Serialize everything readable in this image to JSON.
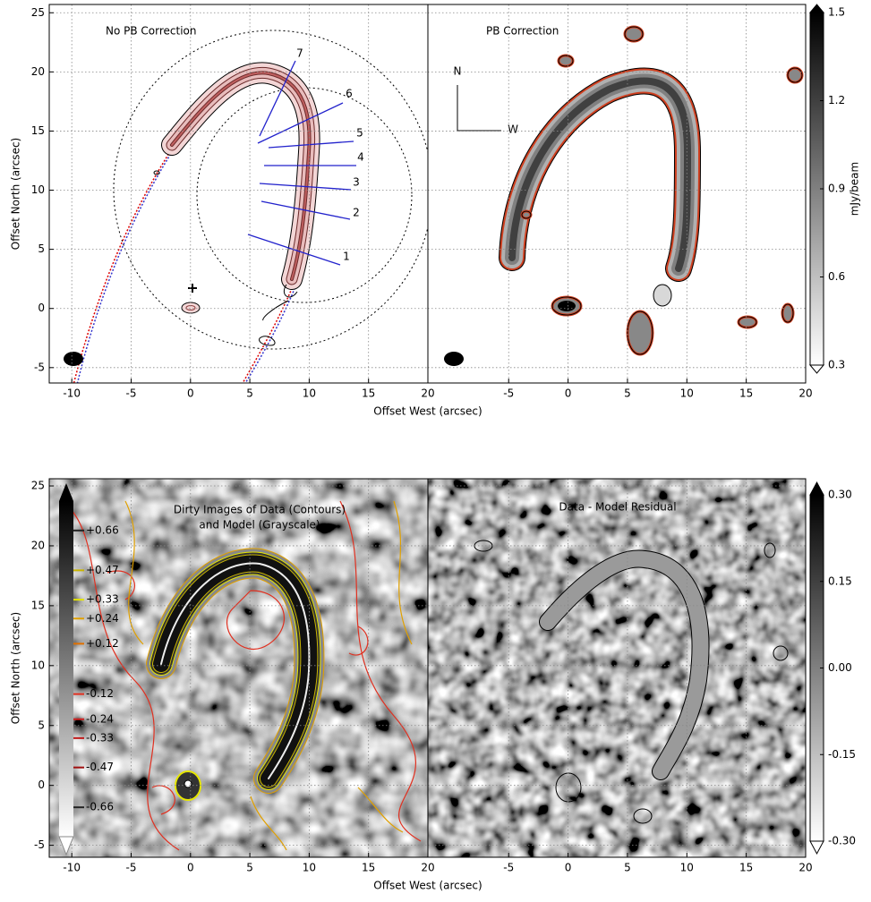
{
  "chart_data": [
    {
      "type": "image",
      "title": "No PB Correction",
      "xlim": [
        -11.9,
        20
      ],
      "ylim": [
        -6.3,
        25.7
      ],
      "xticks": [
        -10,
        -5,
        0,
        5,
        10,
        15,
        20
      ],
      "yticks": [
        -5,
        0,
        5,
        10,
        15,
        20,
        25
      ],
      "xlabel": "Offset West (arcsec)",
      "ylabel": "Offset North (arcsec)",
      "grid": true,
      "slit_labels": [
        "1",
        "2",
        "3",
        "4",
        "5",
        "6",
        "7"
      ]
    },
    {
      "type": "image",
      "title": "PB Correction",
      "xlim": [
        -11.8,
        20
      ],
      "ylim": [
        -6.3,
        25.7
      ],
      "xticks": [
        -5,
        0,
        5,
        10,
        15,
        20
      ],
      "grid": true,
      "annotations": [
        "N",
        "W"
      ],
      "colorbar": {
        "label": "mJy/beam",
        "lim": [
          0.3,
          1.5
        ],
        "ticks": [
          0.3,
          0.6,
          0.9,
          1.2,
          1.5
        ]
      }
    },
    {
      "type": "image",
      "title": [
        "Dirty Images of Data (Contours)",
        "and Model (Grayscale)"
      ],
      "xlim": [
        -11.9,
        20
      ],
      "ylim": [
        -6,
        25.6
      ],
      "xticks": [
        -10,
        -5,
        0,
        5,
        10,
        15,
        20
      ],
      "yticks": [
        -5,
        0,
        5,
        10,
        15,
        20,
        25
      ],
      "xlabel": "Offset West (arcsec)",
      "ylabel": "Offset North (arcsec)",
      "grid": true,
      "contour_colorbar": {
        "lim": [
          -0.8,
          0.8
        ],
        "levels": [
          {
            "value": 0.66,
            "label": "+0.66",
            "color": "#222222"
          },
          {
            "value": 0.47,
            "label": "+0.47",
            "color": "#c8b400"
          },
          {
            "value": 0.33,
            "label": "+0.33",
            "color": "#e6e600"
          },
          {
            "value": 0.24,
            "label": "+0.24",
            "color": "#e0a000"
          },
          {
            "value": 0.12,
            "label": "+0.12",
            "color": "#e07000"
          },
          {
            "value": -0.12,
            "label": "-0.12",
            "color": "#e03020"
          },
          {
            "value": -0.24,
            "label": "-0.24",
            "color": "#d02020"
          },
          {
            "value": -0.33,
            "label": "-0.33",
            "color": "#c01818"
          },
          {
            "value": -0.47,
            "label": "-0.47",
            "color": "#a01010"
          },
          {
            "value": -0.66,
            "label": "-0.66",
            "color": "#222222"
          }
        ]
      }
    },
    {
      "type": "image",
      "title": "Data - Model Residual",
      "xlim": [
        -11.8,
        20
      ],
      "ylim": [
        -6,
        25.6
      ],
      "xticks": [
        -5,
        0,
        5,
        10,
        15,
        20
      ],
      "grid": true,
      "colorbar": {
        "lim": [
          -0.3,
          0.3
        ],
        "ticks": [
          {
            "value": -0.3,
            "label": "-0.30"
          },
          -0.15,
          {
            "value": 0,
            "label": "0.00"
          },
          0.15,
          {
            "value": 0.3,
            "label": "0.30"
          }
        ]
      }
    }
  ]
}
